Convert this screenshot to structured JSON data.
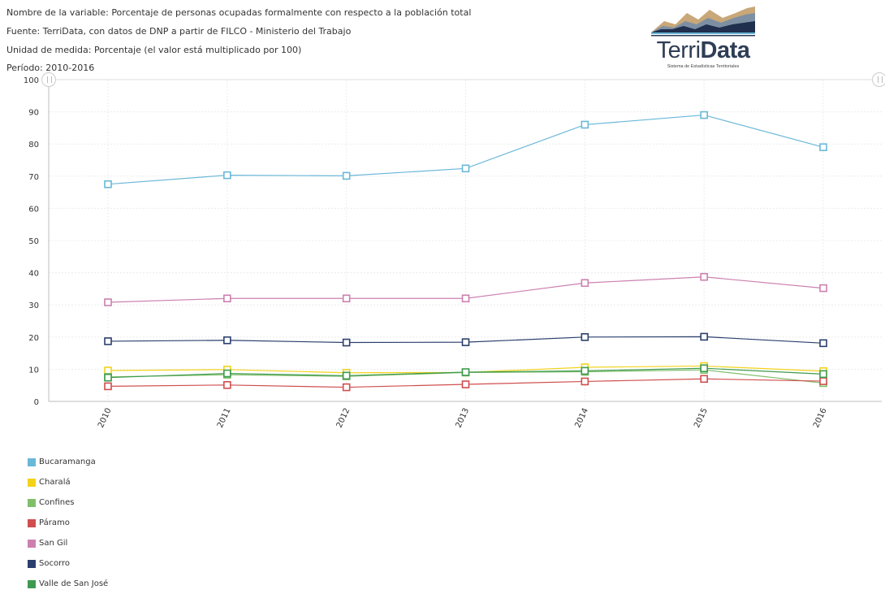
{
  "header": {
    "variable": "Nombre de la variable: Porcentaje de personas ocupadas formalmente con respecto a la población total",
    "source": "Fuente: TerriData, con datos de DNP a partir de FILCO - Ministerio del Trabajo",
    "unit": "Unidad de medida: Porcentaje (el valor está multiplicado por 100)",
    "period": "Período: 2010-2016"
  },
  "logo": {
    "text_light": "Terri",
    "text_bold": "Data",
    "subtitle": "Sistema de Estadísticas Territoriales"
  },
  "chart_data": {
    "type": "line",
    "categories": [
      "2010",
      "2011",
      "2012",
      "2013",
      "2014",
      "2015",
      "2016"
    ],
    "ylim": [
      0,
      100
    ],
    "yticks": [
      0,
      10,
      20,
      30,
      40,
      50,
      60,
      70,
      80,
      90,
      100
    ],
    "grid": true,
    "legend_position": "bottom-left",
    "marker": "square",
    "series": [
      {
        "name": "Bucaramanga",
        "color": "#6ab8d8",
        "values": [
          67.5,
          70.3,
          70.1,
          72.4,
          86.0,
          89.0,
          79.0
        ]
      },
      {
        "name": "Charalá",
        "color": "#f2d31b",
        "values": [
          9.6,
          9.9,
          8.9,
          9.0,
          10.6,
          11.0,
          9.4
        ]
      },
      {
        "name": "Confines",
        "color": "#7fbf6a",
        "values": [
          7.6,
          8.3,
          7.8,
          9.0,
          9.2,
          9.8,
          5.7
        ]
      },
      {
        "name": "Páramo",
        "color": "#d04e4e",
        "values": [
          4.7,
          5.1,
          4.4,
          5.3,
          6.2,
          7.0,
          6.3
        ]
      },
      {
        "name": "San Gil",
        "color": "#cc80b0",
        "values": [
          30.8,
          32.0,
          32.0,
          32.0,
          36.8,
          38.7,
          35.2
        ]
      },
      {
        "name": "Socorro",
        "color": "#2b3f6e",
        "values": [
          18.7,
          19.0,
          18.3,
          18.4,
          20.0,
          20.1,
          18.1
        ]
      },
      {
        "name": "Valle de San José",
        "color": "#3e9a4e",
        "values": [
          7.4,
          8.7,
          8.0,
          9.1,
          9.5,
          10.3,
          8.5
        ]
      }
    ]
  }
}
